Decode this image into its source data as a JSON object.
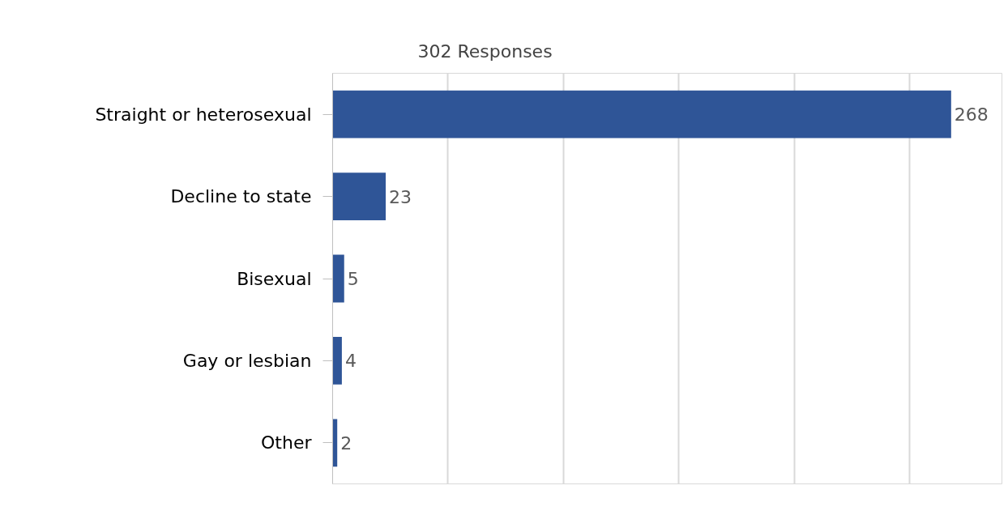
{
  "chart_data": {
    "type": "bar",
    "orientation": "horizontal",
    "title": "302 Responses",
    "categories": [
      "Straight or heterosexual",
      "Decline to state",
      "Bisexual",
      "Gay or lesbian",
      "Other"
    ],
    "values": [
      268,
      23,
      5,
      4,
      2
    ],
    "color": "#2f5597",
    "xlim": [
      0,
      290
    ],
    "xticks": [
      {
        "value": 0,
        "label": null
      },
      {
        "value": 50,
        "label": null
      },
      {
        "value": 100,
        "label": null
      },
      {
        "value": 150,
        "label": null
      },
      {
        "value": 200,
        "label": null
      },
      {
        "value": 250,
        "label": null
      }
    ],
    "tick_labels": "y",
    "grid": "x",
    "data_labels": true
  }
}
